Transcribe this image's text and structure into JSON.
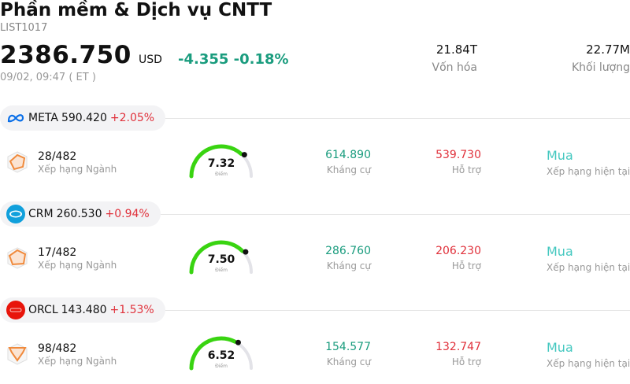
{
  "header": {
    "title": "Phần mềm & Dịch vụ CNTT",
    "code": "LIST1017",
    "price": "2386.750",
    "currency": "USD",
    "change": "-4.355 -0.18%",
    "time": "09/02, 09:47  ( ET )",
    "market_cap_value": "21.84T",
    "market_cap_label": "Vốn hóa",
    "volume_value": "22.77M",
    "volume_label": "Khối lượng"
  },
  "colors": {
    "up": "#e0313b",
    "down": "#1a9c7e",
    "gauge_fill": "#39d411",
    "gauge_track": "#e3e3e8",
    "rating": "#45c8c0"
  },
  "stocks": [
    {
      "logo_icon": "meta-logo-icon",
      "ticker": "META",
      "price": "590.420",
      "pct": "+2.05%",
      "rank": "28/482",
      "rank_label": "Xếp hạng Ngành",
      "score": "7.32",
      "score_label": "Điểm",
      "score_value": 7.32,
      "resistance": "614.890",
      "resistance_label": "Kháng cự",
      "support": "539.730",
      "support_label": "Hỗ trợ",
      "rating": "Mua",
      "rating_label": "Xếp hạng hiện tại"
    },
    {
      "logo_icon": "salesforce-logo-icon",
      "ticker": "CRM",
      "price": "260.530",
      "pct": "+0.94%",
      "rank": "17/482",
      "rank_label": "Xếp hạng Ngành",
      "score": "7.50",
      "score_label": "Điểm",
      "score_value": 7.5,
      "resistance": "286.760",
      "resistance_label": "Kháng cự",
      "support": "206.230",
      "support_label": "Hỗ trợ",
      "rating": "Mua",
      "rating_label": "Xếp hạng hiện tại"
    },
    {
      "logo_icon": "oracle-logo-icon",
      "ticker": "ORCL",
      "price": "143.480",
      "pct": "+1.53%",
      "rank": "98/482",
      "rank_label": "Xếp hạng Ngành",
      "score": "6.52",
      "score_label": "Điểm",
      "score_value": 6.52,
      "resistance": "154.577",
      "resistance_label": "Kháng cự",
      "support": "132.747",
      "support_label": "Hỗ trợ",
      "rating": "Mua",
      "rating_label": "Xếp hạng hiện tại"
    }
  ]
}
